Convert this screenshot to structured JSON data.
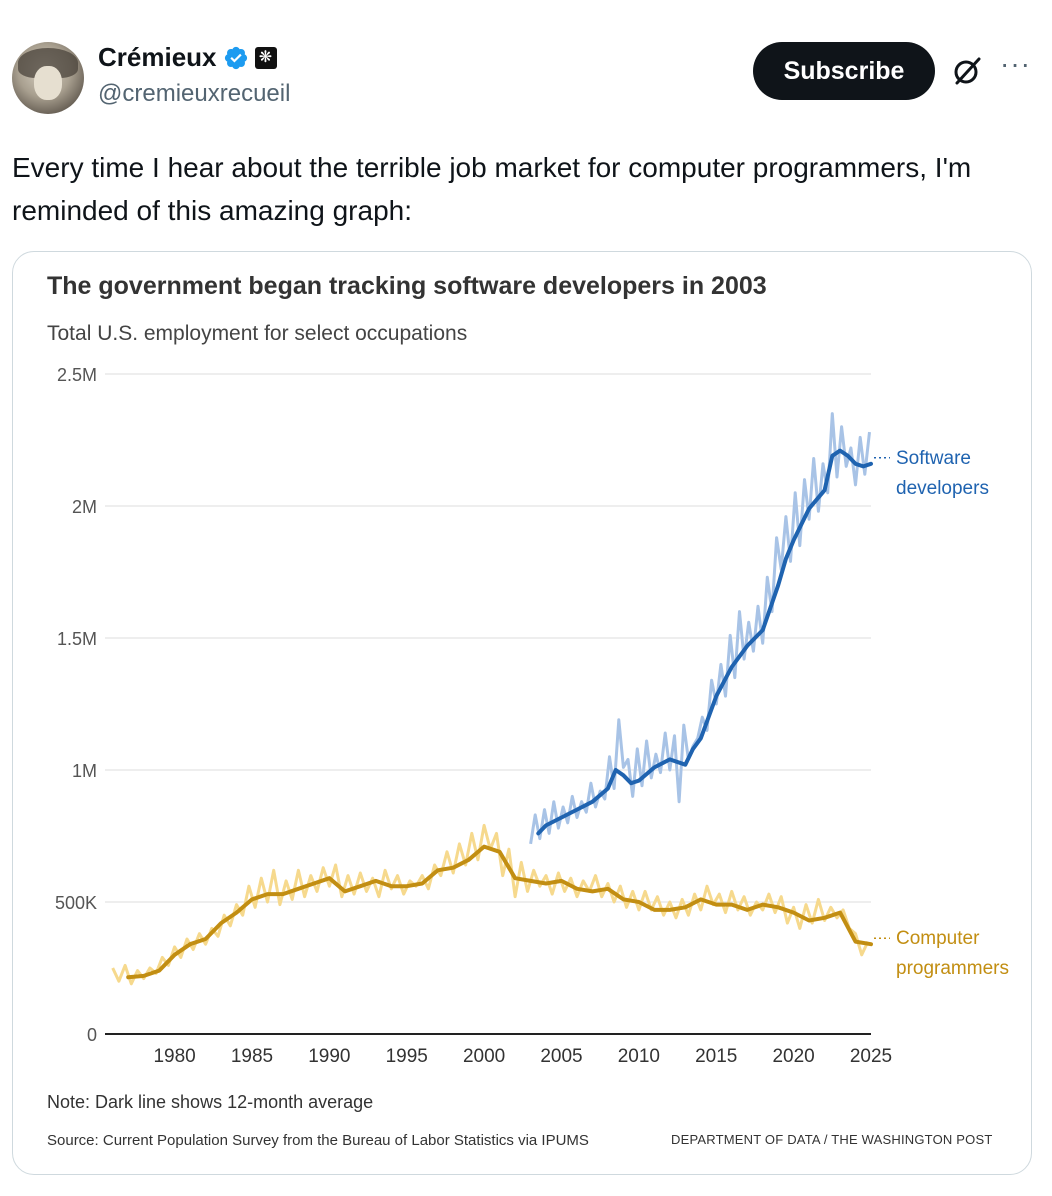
{
  "author": {
    "name": "Crémieux",
    "handle": "@cremieuxrecueil",
    "badge_icon": "flower-badge-icon",
    "badge_glyph": "❋"
  },
  "actions": {
    "subscribe_label": "Subscribe",
    "more_label": "···"
  },
  "tweet": {
    "text": "Every time I hear about the terrible job market for computer programmers, I'm reminded of this amazing graph:"
  },
  "chart_data": {
    "type": "line",
    "title": "The government began tracking software developers in 2003",
    "subtitle": "Total U.S. employment for select occupations",
    "ylim": [
      0,
      2500000
    ],
    "xlim": [
      1975.5,
      2025
    ],
    "y_ticks": [
      {
        "value": 0,
        "label": "0"
      },
      {
        "value": 500000,
        "label": "500K"
      },
      {
        "value": 1000000,
        "label": "1M"
      },
      {
        "value": 1500000,
        "label": "1.5M"
      },
      {
        "value": 2000000,
        "label": "2M"
      },
      {
        "value": 2500000,
        "label": "2.5M"
      }
    ],
    "x_ticks": [
      1980,
      1985,
      1990,
      1995,
      2000,
      2005,
      2010,
      2015,
      2020,
      2025
    ],
    "grid": true,
    "series": [
      {
        "name": "Software developers",
        "label_lines": [
          "Software",
          "developers"
        ],
        "color": "#1f63b0",
        "raw_color": "#a8c3e6",
        "avg_x": [
          2003.5,
          2004,
          2005,
          2006,
          2007,
          2008,
          2008.5,
          2009,
          2009.5,
          2010,
          2011,
          2012,
          2013,
          2013.5,
          2014,
          2015,
          2016,
          2017,
          2018,
          2019,
          2019.5,
          2020,
          2021,
          2022,
          2022.5,
          2023,
          2023.5,
          2024,
          2024.5,
          2025
        ],
        "avg_y": [
          760000,
          790000,
          820000,
          850000,
          880000,
          930000,
          1000000,
          980000,
          950000,
          960000,
          1010000,
          1040000,
          1020000,
          1080000,
          1120000,
          1280000,
          1390000,
          1470000,
          1530000,
          1700000,
          1800000,
          1870000,
          1990000,
          2060000,
          2190000,
          2210000,
          2190000,
          2160000,
          2150000,
          2160000
        ],
        "raw_x": [
          2003,
          2003.3,
          2003.6,
          2003.9,
          2004.2,
          2004.5,
          2004.8,
          2005.1,
          2005.4,
          2005.7,
          2006,
          2006.3,
          2006.6,
          2006.9,
          2007.2,
          2007.5,
          2007.8,
          2008.1,
          2008.4,
          2008.7,
          2009,
          2009.3,
          2009.6,
          2009.9,
          2010.2,
          2010.5,
          2010.8,
          2011.1,
          2011.4,
          2011.7,
          2012,
          2012.3,
          2012.6,
          2012.9,
          2013.2,
          2013.5,
          2013.8,
          2014.1,
          2014.4,
          2014.7,
          2015,
          2015.3,
          2015.6,
          2015.9,
          2016.2,
          2016.5,
          2016.8,
          2017.1,
          2017.4,
          2017.7,
          2018,
          2018.3,
          2018.6,
          2018.9,
          2019.2,
          2019.5,
          2019.8,
          2020.1,
          2020.4,
          2020.7,
          2021,
          2021.3,
          2021.6,
          2021.9,
          2022.2,
          2022.5,
          2022.8,
          2023.1,
          2023.4,
          2023.7,
          2024,
          2024.3,
          2024.6,
          2024.9
        ],
        "raw_y": [
          720000,
          830000,
          740000,
          850000,
          760000,
          880000,
          780000,
          860000,
          800000,
          900000,
          820000,
          880000,
          840000,
          950000,
          860000,
          920000,
          890000,
          1050000,
          930000,
          1190000,
          1010000,
          1040000,
          900000,
          1080000,
          940000,
          1110000,
          970000,
          1060000,
          990000,
          1140000,
          1000000,
          1130000,
          880000,
          1170000,
          1040000,
          1090000,
          1120000,
          1200000,
          1150000,
          1340000,
          1250000,
          1400000,
          1280000,
          1510000,
          1350000,
          1600000,
          1420000,
          1560000,
          1450000,
          1620000,
          1480000,
          1730000,
          1600000,
          1880000,
          1760000,
          1960000,
          1790000,
          2050000,
          1850000,
          2100000,
          1950000,
          2180000,
          1980000,
          2160000,
          2050000,
          2350000,
          2110000,
          2300000,
          2150000,
          2220000,
          2080000,
          2260000,
          2120000,
          2280000
        ]
      },
      {
        "name": "Computer programmers",
        "label_lines": [
          "Computer",
          "programmers"
        ],
        "color": "#c28e12",
        "raw_color": "#f6d98d",
        "avg_x": [
          1977,
          1978,
          1979,
          1980,
          1981,
          1982,
          1983,
          1984,
          1985,
          1986,
          1987,
          1988,
          1989,
          1990,
          1991,
          1992,
          1993,
          1994,
          1995,
          1996,
          1997,
          1998,
          1999,
          2000,
          2001,
          2002,
          2003,
          2004,
          2005,
          2006,
          2007,
          2008,
          2009,
          2010,
          2011,
          2012,
          2013,
          2014,
          2015,
          2016,
          2017,
          2018,
          2019,
          2020,
          2021,
          2022,
          2023,
          2024,
          2025
        ],
        "avg_y": [
          215000,
          220000,
          240000,
          300000,
          340000,
          360000,
          420000,
          460000,
          510000,
          530000,
          530000,
          550000,
          570000,
          590000,
          540000,
          560000,
          580000,
          560000,
          560000,
          570000,
          620000,
          630000,
          660000,
          710000,
          690000,
          590000,
          580000,
          570000,
          580000,
          550000,
          540000,
          550000,
          510000,
          500000,
          470000,
          470000,
          480000,
          510000,
          490000,
          490000,
          470000,
          490000,
          480000,
          460000,
          430000,
          440000,
          460000,
          350000,
          340000
        ],
        "raw_x": [
          1976,
          1976.4,
          1976.8,
          1977.2,
          1977.6,
          1978,
          1978.4,
          1978.8,
          1979.2,
          1979.6,
          1980,
          1980.4,
          1980.8,
          1981.2,
          1981.6,
          1982,
          1982.4,
          1982.8,
          1983.2,
          1983.6,
          1984,
          1984.4,
          1984.8,
          1985.2,
          1985.6,
          1986,
          1986.4,
          1986.8,
          1987.2,
          1987.6,
          1988,
          1988.4,
          1988.8,
          1989.2,
          1989.6,
          1990,
          1990.4,
          1990.8,
          1991.2,
          1991.6,
          1992,
          1992.4,
          1992.8,
          1993.2,
          1993.6,
          1994,
          1994.4,
          1994.8,
          1995.2,
          1995.6,
          1996,
          1996.4,
          1996.8,
          1997.2,
          1997.6,
          1998,
          1998.4,
          1998.8,
          1999.2,
          1999.6,
          2000,
          2000.4,
          2000.8,
          2001.2,
          2001.6,
          2002,
          2002.4,
          2002.8,
          2003.2,
          2003.6,
          2004,
          2004.4,
          2004.8,
          2005.2,
          2005.6,
          2006,
          2006.4,
          2006.8,
          2007.2,
          2007.6,
          2008,
          2008.4,
          2008.8,
          2009.2,
          2009.6,
          2010,
          2010.4,
          2010.8,
          2011.2,
          2011.6,
          2012,
          2012.4,
          2012.8,
          2013.2,
          2013.6,
          2014,
          2014.4,
          2014.8,
          2015.2,
          2015.6,
          2016,
          2016.4,
          2016.8,
          2017.2,
          2017.6,
          2018,
          2018.4,
          2018.8,
          2019.2,
          2019.6,
          2020,
          2020.4,
          2020.8,
          2021.2,
          2021.6,
          2022,
          2022.4,
          2022.8,
          2023.2,
          2023.6,
          2024,
          2024.4,
          2024.8
        ],
        "raw_y": [
          250000,
          200000,
          260000,
          190000,
          240000,
          210000,
          250000,
          230000,
          290000,
          260000,
          330000,
          290000,
          360000,
          320000,
          380000,
          340000,
          400000,
          370000,
          450000,
          410000,
          490000,
          450000,
          560000,
          480000,
          590000,
          500000,
          620000,
          490000,
          580000,
          510000,
          620000,
          520000,
          600000,
          540000,
          630000,
          560000,
          640000,
          520000,
          600000,
          530000,
          610000,
          540000,
          590000,
          520000,
          620000,
          550000,
          600000,
          530000,
          580000,
          560000,
          600000,
          550000,
          640000,
          600000,
          690000,
          610000,
          720000,
          640000,
          760000,
          660000,
          790000,
          700000,
          760000,
          600000,
          700000,
          520000,
          650000,
          540000,
          620000,
          560000,
          600000,
          530000,
          610000,
          540000,
          590000,
          520000,
          580000,
          540000,
          600000,
          520000,
          570000,
          500000,
          560000,
          480000,
          540000,
          470000,
          540000,
          470000,
          520000,
          450000,
          500000,
          440000,
          510000,
          450000,
          530000,
          470000,
          560000,
          490000,
          530000,
          460000,
          540000,
          470000,
          520000,
          450000,
          500000,
          470000,
          530000,
          460000,
          520000,
          420000,
          480000,
          400000,
          490000,
          420000,
          510000,
          430000,
          480000,
          440000,
          470000,
          400000,
          380000,
          300000,
          350000
        ]
      }
    ]
  },
  "footer": {
    "note": "Note: Dark line shows 12-month average",
    "source": "Source: Current Population Survey from the Bureau of Labor Statistics via IPUMS",
    "credit": "DEPARTMENT OF DATA / THE WASHINGTON POST"
  }
}
